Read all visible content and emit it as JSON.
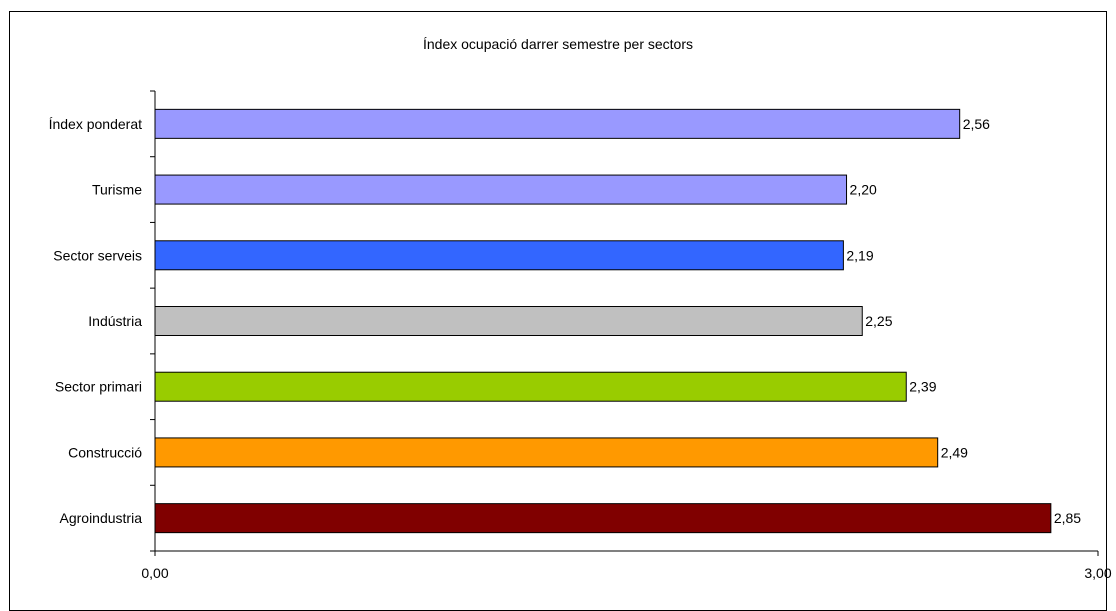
{
  "chart_data": {
    "type": "bar",
    "orientation": "horizontal",
    "title": "Índex ocupació darrer semestre per sectors",
    "categories": [
      "Índex ponderat",
      "Turisme",
      "Sector serveis",
      "Indústria",
      "Sector primari",
      "Construcció",
      "Agroindustria"
    ],
    "values": [
      2.56,
      2.2,
      2.19,
      2.25,
      2.39,
      2.49,
      2.85
    ],
    "value_labels": [
      "2,56",
      "2,20",
      "2,19",
      "2,25",
      "2,39",
      "2,49",
      "2,85"
    ],
    "colors": [
      "#9999ff",
      "#9999ff",
      "#3366ff",
      "#c0c0c0",
      "#99cc00",
      "#ff9900",
      "#800000"
    ],
    "xlim": [
      0,
      3
    ],
    "x_tick_labels": [
      "0,00",
      "3,00"
    ],
    "xlabel": "",
    "ylabel": "",
    "grid": false,
    "legend": "none"
  }
}
